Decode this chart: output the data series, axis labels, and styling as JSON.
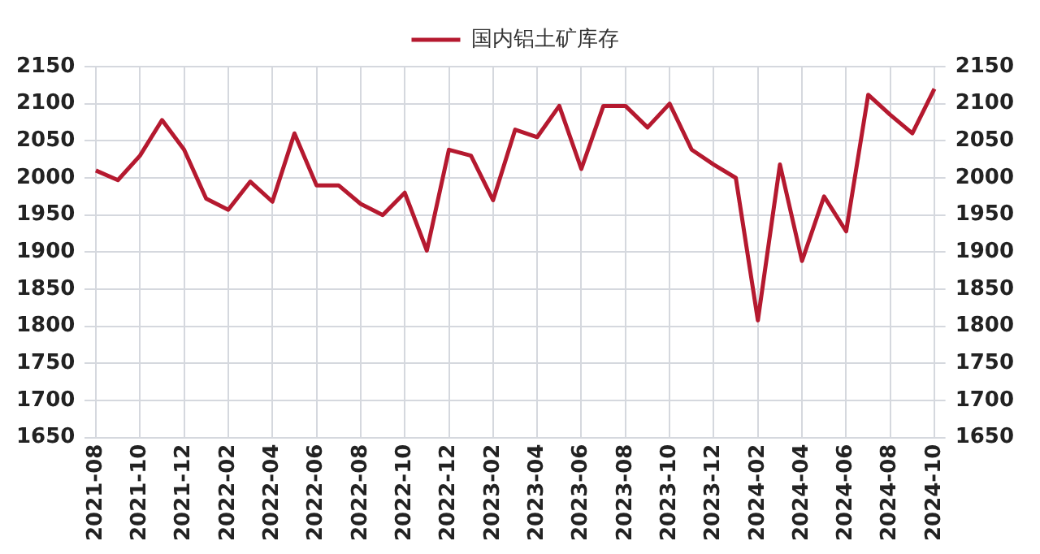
{
  "chart_data": {
    "type": "line",
    "categories": [
      "2021-08",
      null,
      "2021-10",
      null,
      "2021-12",
      null,
      "2022-02",
      null,
      "2022-04",
      null,
      "2022-06",
      null,
      "2022-08",
      null,
      "2022-10",
      null,
      "2022-12",
      null,
      "2023-02",
      null,
      "2023-04",
      null,
      "2023-06",
      null,
      "2023-08",
      null,
      "2023-10",
      null,
      "2023-12",
      null,
      "2024-02",
      null,
      "2024-04",
      null,
      "2024-06",
      null,
      "2024-08",
      null,
      "2024-10"
    ],
    "series": [
      {
        "name": "国内铝土矿库存",
        "color": "#b5192f",
        "values": [
          2010,
          1997,
          2030,
          2078,
          2038,
          1972,
          1957,
          1995,
          1968,
          2060,
          1990,
          1990,
          1965,
          1950,
          1980,
          1902,
          2038,
          2030,
          1970,
          2065,
          2055,
          2097,
          2012,
          2097,
          2097,
          2068,
          2100,
          2038,
          2018,
          2000,
          1808,
          2018,
          1888,
          1975,
          1928,
          2112,
          2085,
          2060,
          2120
        ]
      }
    ],
    "ylim": [
      1650,
      2150
    ],
    "yticks": [
      1650,
      1700,
      1750,
      1800,
      1850,
      1900,
      1950,
      2000,
      2050,
      2100,
      2150
    ],
    "y2lim": [
      1650,
      2150
    ],
    "y2ticks": [
      1650,
      1700,
      1750,
      1800,
      1850,
      1900,
      1950,
      2000,
      2050,
      2100,
      2150
    ],
    "grid": true,
    "legend": "top",
    "marker": "none",
    "line_style": "solid"
  }
}
